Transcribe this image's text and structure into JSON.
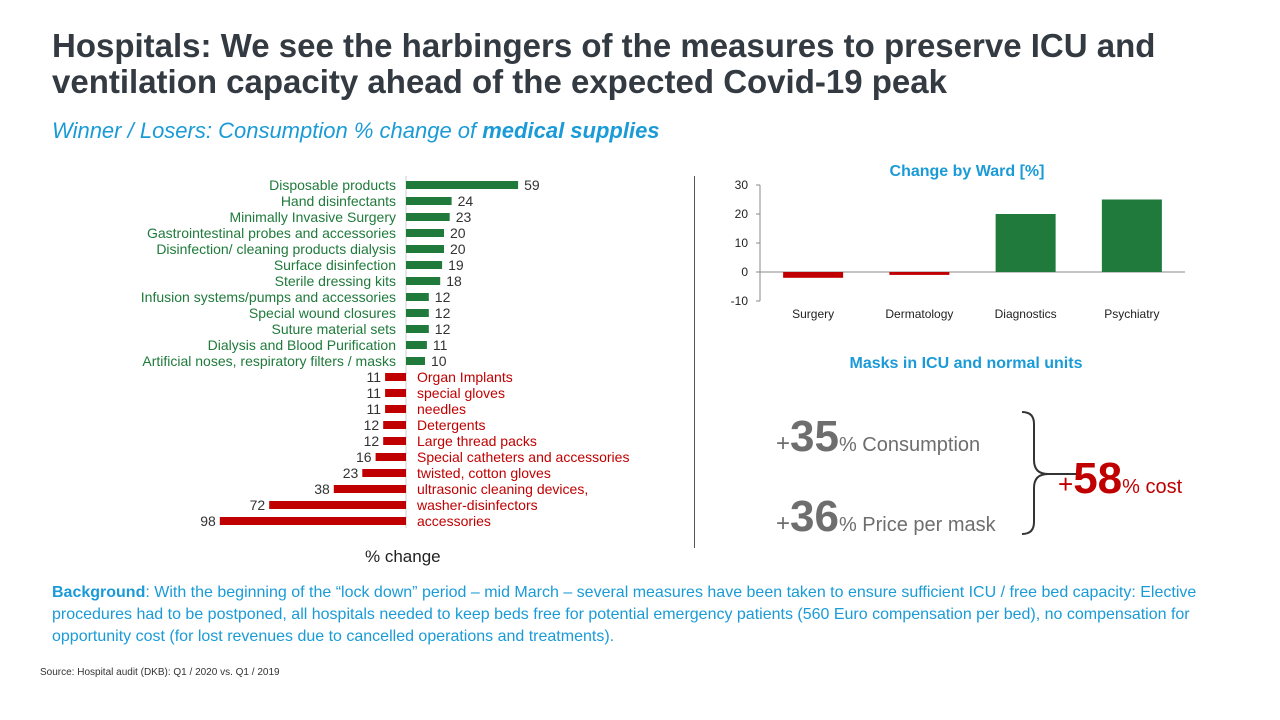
{
  "title": "Hospitals: We see the harbingers of the measures to preserve ICU and ventilation capacity ahead of the expected Covid-19 peak",
  "subtitle": {
    "prefix": "Winner / Losers: Consumption % change of ",
    "emphasis": "medical supplies"
  },
  "colors": {
    "green": "#1f7a3b",
    "red": "#c00000",
    "accent": "#1a9bd7"
  },
  "chart_data": [
    {
      "type": "bar",
      "orientation": "horizontal",
      "xlabel": "% change",
      "categories": [
        "Disposable products",
        "Hand disinfectants",
        "Minimally Invasive Surgery",
        "Gastrointestinal probes and accessories",
        "Disinfection/ cleaning products dialysis",
        "Surface disinfection",
        "Sterile dressing kits",
        "Infusion systems/pumps and accessories",
        "Special wound closures",
        "Suture material sets",
        "Dialysis and Blood Purification",
        "Artificial noses, respiratory filters / masks",
        "Organ Implants",
        "special gloves",
        "needles",
        "Detergents",
        "Large thread packs",
        "Special catheters and accessories",
        "twisted, cotton gloves",
        "ultrasonic cleaning devices,",
        "washer-disinfectors",
        "accessories"
      ],
      "values": [
        59,
        24,
        23,
        20,
        20,
        19,
        18,
        12,
        12,
        12,
        11,
        10,
        -11,
        -11,
        -11,
        -12,
        -12,
        -16,
        -23,
        -38,
        -72,
        -98
      ],
      "value_labels": [
        "59",
        "24",
        "23",
        "20",
        "20",
        "19",
        "18",
        "12",
        "12",
        "12",
        "11",
        "10",
        "11",
        "11",
        "11",
        "12",
        "12",
        "16",
        "23",
        "38",
        "72",
        "98"
      ]
    },
    {
      "type": "bar",
      "title": "Change by Ward [%]",
      "categories": [
        "Surgery",
        "Dermatology",
        "Diagnostics",
        "Psychiatry"
      ],
      "values": [
        -2,
        -1,
        20,
        25
      ],
      "ylim": [
        -10,
        30
      ],
      "yticks": [
        "30",
        "20",
        "10",
        "0",
        "-10"
      ]
    }
  ],
  "masks": {
    "title": "Masks in ICU and normal units",
    "consumption": {
      "plus": "+",
      "value": "35",
      "suffix": "% Consumption"
    },
    "price": {
      "plus": "+",
      "value": "36",
      "suffix": "% Price per mask"
    },
    "cost": {
      "plus": "+",
      "value": "58",
      "suffix": "% cost"
    }
  },
  "background": {
    "label": "Background",
    "text": ": With the beginning of the “lock down” period – mid March – several measures have been taken to ensure sufficient ICU / free bed capacity:   Elective procedures had to be postponed, all hospitals needed to keep beds free for potential emergency patients (560 Euro compensation per bed), no compensation for opportunity cost (for lost revenues due to cancelled operations and treatments)."
  },
  "source": "Source: Hospital audit (DKB): Q1 / 2020 vs. Q1 / 2019"
}
